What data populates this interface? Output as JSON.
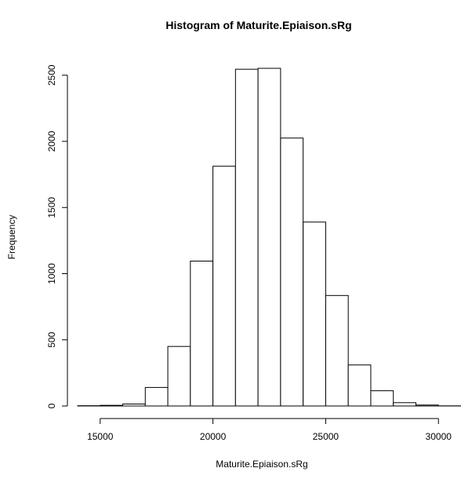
{
  "chart_data": {
    "type": "bar",
    "title": "Histogram of Maturite.Epiaison.sRg",
    "xlabel": "Maturite.Epiaison.sRg",
    "ylabel": "Frequency",
    "bin_edges": [
      14000,
      15000,
      16000,
      17000,
      18000,
      19000,
      20000,
      21000,
      22000,
      23000,
      24000,
      25000,
      26000,
      27000,
      28000,
      29000,
      30000,
      31000
    ],
    "values": [
      2,
      5,
      15,
      140,
      450,
      1095,
      1812,
      2545,
      2552,
      2025,
      1390,
      835,
      310,
      115,
      25,
      7,
      1
    ],
    "xlim": [
      14000,
      31000
    ],
    "ylim": [
      0,
      2552
    ],
    "x_ticks": [
      15000,
      20000,
      25000,
      30000
    ],
    "y_ticks": [
      0,
      500,
      1000,
      1500,
      2000,
      2500
    ],
    "grid": false
  }
}
